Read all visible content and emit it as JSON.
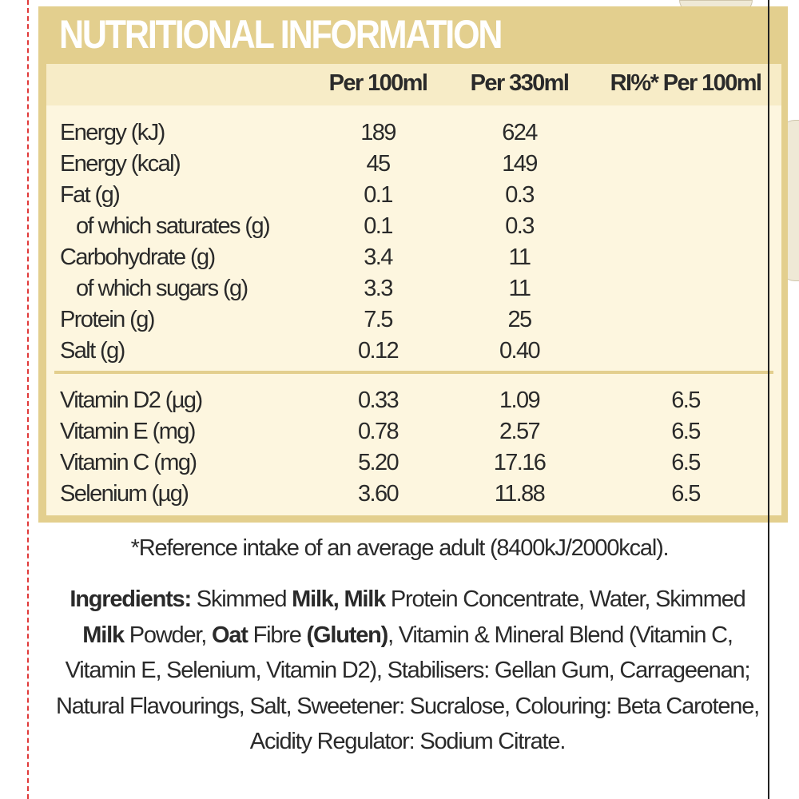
{
  "title": "NUTRITIONAL INFORMATION",
  "columns": [
    "Per 100ml",
    "Per 330ml",
    "RI%* Per 100ml"
  ],
  "rows": [
    {
      "label": "Energy (kJ)",
      "per100": "189",
      "per330": "624",
      "ri": ""
    },
    {
      "label": "Energy (kcal)",
      "per100": "45",
      "per330": "149",
      "ri": ""
    },
    {
      "label": "Fat (g)",
      "per100": "0.1",
      "per330": "0.3",
      "ri": ""
    },
    {
      "label": "of which saturates (g)",
      "per100": "0.1",
      "per330": "0.3",
      "ri": ""
    },
    {
      "label": "Carbohydrate (g)",
      "per100": "3.4",
      "per330": "11",
      "ri": ""
    },
    {
      "label": "of which sugars (g)",
      "per100": "3.3",
      "per330": "11",
      "ri": ""
    },
    {
      "label": "Protein (g)",
      "per100": "7.5",
      "per330": "25",
      "ri": ""
    },
    {
      "label": "Salt (g)",
      "per100": "0.12",
      "per330": "0.40",
      "ri": ""
    },
    {
      "label": "Vitamin D2 (µg)",
      "per100": "0.33",
      "per330": "1.09",
      "ri": "6.5"
    },
    {
      "label": "Vitamin E (mg)",
      "per100": "0.78",
      "per330": "2.57",
      "ri": "6.5"
    },
    {
      "label": "Vitamin C (mg)",
      "per100": "5.20",
      "per330": "17.16",
      "ri": "6.5"
    },
    {
      "label": "Selenium (µg)",
      "per100": "3.60",
      "per330": "11.88",
      "ri": "6.5"
    }
  ],
  "footnote": "*Reference intake of an average adult (8400kJ/2000kcal).",
  "ingredients": [
    {
      "t": "Ingredients:",
      "b": true
    },
    {
      "t": " Skimmed ",
      "b": false
    },
    {
      "t": "Milk, Milk",
      "b": true
    },
    {
      "t": " Protein Concentrate, Water, Skimmed ",
      "b": false
    },
    {
      "t": "Milk",
      "b": true
    },
    {
      "t": " Powder, ",
      "b": false
    },
    {
      "t": "Oat",
      "b": true
    },
    {
      "t": " Fibre ",
      "b": false
    },
    {
      "t": "(Gluten)",
      "b": true
    },
    {
      "t": ", Vitamin & Mineral Blend (Vitamin C, Vitamin E, Selenium, Vitamin D2), Stabilisers: Gellan Gum, Carrageenan; Natural Flavourings, Salt, Sweetener: Sucralose, Colouring: Beta Carotene, Acidity Regulator: Sodium Citrate.",
      "b": false
    }
  ],
  "colors": {
    "band": "#e3cf8e",
    "panel": "#fdf6df",
    "text": "#2a2a2a"
  }
}
